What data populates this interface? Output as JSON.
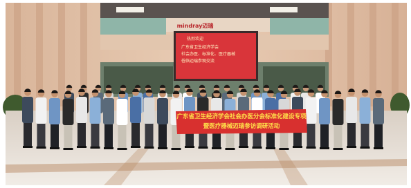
{
  "sign": "mindray迈瑞",
  "screen": {
    "lines": [
      "热烈欢迎",
      "广东省卫生经济学会",
      "社会办医、标准化、医疗器械",
      "莅临迈瑞参观交流"
    ]
  },
  "banner": {
    "lines": [
      "广东省卫生经济学会社会办医分会标准化建设专项",
      "暨医疗器械迈瑞参访调研活动"
    ]
  }
}
